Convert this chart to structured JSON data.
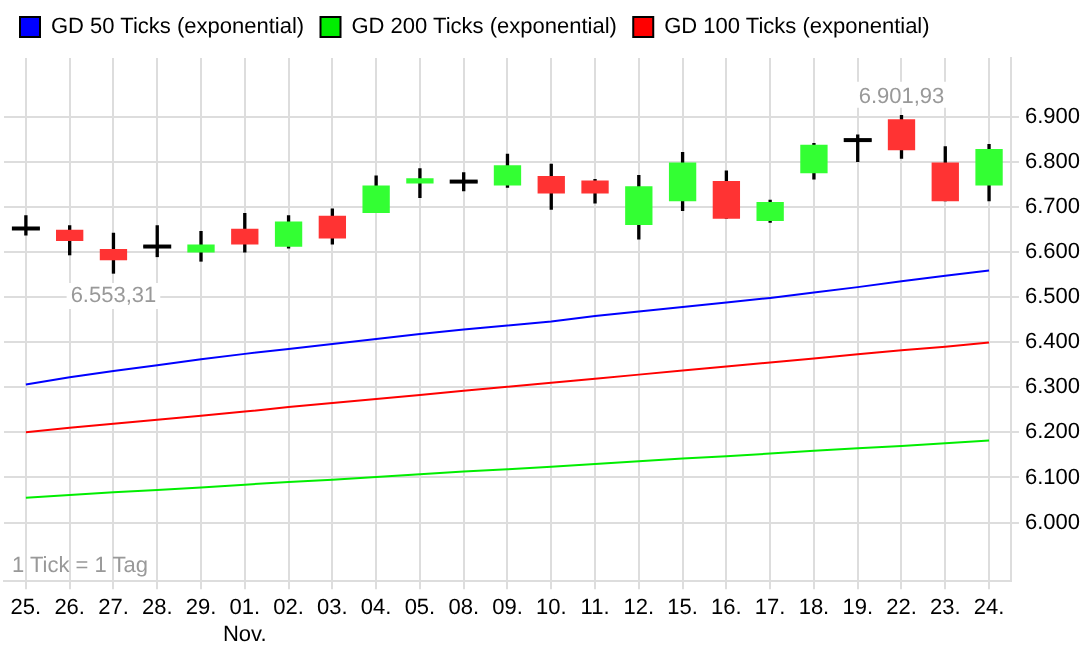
{
  "chart_data": {
    "type": "candlestick",
    "categories": [
      "25.",
      "26.",
      "27.",
      "28.",
      "29.",
      "01.\nNov.",
      "02.",
      "03.",
      "04.",
      "05.",
      "08.",
      "09.",
      "10.",
      "11.",
      "12.",
      "15.",
      "16.",
      "17.",
      "18.",
      "19.",
      "22.",
      "23.",
      "24."
    ],
    "ohlc": [
      [
        6652,
        6680,
        6638,
        6652
      ],
      [
        6648,
        6658,
        6594,
        6626
      ],
      [
        6605,
        6641,
        6553.31,
        6583
      ],
      [
        6612,
        6658,
        6590,
        6612
      ],
      [
        6600,
        6645,
        6580,
        6615
      ],
      [
        6650,
        6685,
        6600,
        6618
      ],
      [
        6613,
        6680,
        6609,
        6666
      ],
      [
        6679,
        6695,
        6618,
        6631
      ],
      [
        6688,
        6768,
        6688,
        6746
      ],
      [
        6753,
        6784,
        6721,
        6762
      ],
      [
        6756,
        6775,
        6736,
        6756
      ],
      [
        6749,
        6816,
        6744,
        6791
      ],
      [
        6767,
        6794,
        6695,
        6731
      ],
      [
        6757,
        6760,
        6709,
        6731
      ],
      [
        6661,
        6769,
        6629,
        6744
      ],
      [
        6714,
        6820,
        6692,
        6797
      ],
      [
        6756,
        6779,
        6675,
        6675
      ],
      [
        6670,
        6714,
        6666,
        6709
      ],
      [
        6776,
        6840,
        6762,
        6836
      ],
      [
        6848,
        6859,
        6801,
        6848
      ],
      [
        6893,
        6901.93,
        6808,
        6827
      ],
      [
        6797,
        6833,
        6714,
        6714
      ],
      [
        6749,
        6838,
        6714,
        6827
      ]
    ],
    "colors": [
      "#000000",
      "#ff3333",
      "#ff3333",
      "#000000",
      "#33ff33",
      "#ff3333",
      "#33ff33",
      "#ff3333",
      "#33ff33",
      "#33ff33",
      "#000000",
      "#33ff33",
      "#ff3333",
      "#ff3333",
      "#33ff33",
      "#33ff33",
      "#ff3333",
      "#33ff33",
      "#33ff33",
      "#000000",
      "#ff3333",
      "#ff3333",
      "#33ff33"
    ],
    "series": [
      {
        "name": "GD 50 Ticks (exponential)",
        "type": "line",
        "color": "#0000ff",
        "values": [
          6306,
          6322,
          6336,
          6349,
          6362,
          6374,
          6385,
          6396,
          6407,
          6418,
          6428,
          6437,
          6446,
          6458,
          6468,
          6478,
          6488,
          6498,
          6510,
          6522,
          6535,
          6547,
          6559
        ]
      },
      {
        "name": "GD 200 Ticks (exponential)",
        "type": "line",
        "color": "#00ee00",
        "values": [
          6055,
          6061,
          6067,
          6072,
          6078,
          6084,
          6090,
          6095,
          6101,
          6107,
          6113,
          6118,
          6124,
          6130,
          6136,
          6142,
          6147,
          6153,
          6159,
          6165,
          6170,
          6176,
          6182
        ]
      },
      {
        "name": "GD 100 Ticks (exponential)",
        "type": "line",
        "color": "#ff0000",
        "values": [
          6200,
          6210,
          6219,
          6228,
          6237,
          6246,
          6256,
          6265,
          6274,
          6283,
          6292,
          6301,
          6310,
          6319,
          6328,
          6337,
          6346,
          6355,
          6364,
          6373,
          6382,
          6390,
          6399
        ]
      }
    ],
    "ylim": [
      5870,
      7030
    ],
    "yticks": [
      {
        "value": 6000,
        "label": "6.000"
      },
      {
        "value": 6100,
        "label": "6.100"
      },
      {
        "value": 6200,
        "label": "6.200"
      },
      {
        "value": 6300,
        "label": "6.300"
      },
      {
        "value": 6400,
        "label": "6.400"
      },
      {
        "value": 6500,
        "label": "6.500"
      },
      {
        "value": 6600,
        "label": "6.600"
      },
      {
        "value": 6700,
        "label": "6.700"
      },
      {
        "value": 6800,
        "label": "6.800"
      },
      {
        "value": 6900,
        "label": "6.900"
      }
    ],
    "grid": true,
    "legend": "top",
    "marker": "none",
    "line_style": "solid",
    "annotations": [
      {
        "text": "6.553,31",
        "x": "27.",
        "y": 6553.31
      },
      {
        "text": "6.901,93",
        "x": "22.",
        "y": 6901.93
      },
      "1 Tick = 1 Tag"
    ]
  }
}
